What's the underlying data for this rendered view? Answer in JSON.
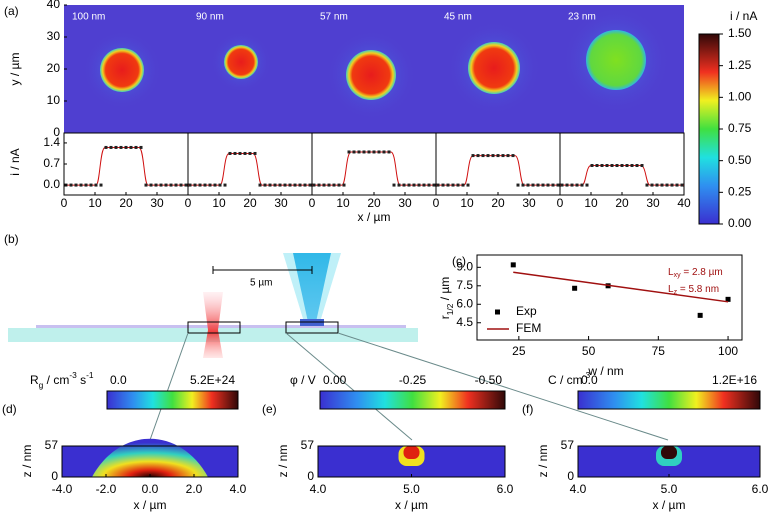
{
  "panel_a": {
    "label": "(a)",
    "maps": [
      "100 nm",
      "90 nm",
      "57 nm",
      "45 nm",
      "23 nm"
    ],
    "y_label": "y / µm",
    "y_ticks": [
      0,
      10,
      20,
      30,
      40
    ],
    "profile_label": "i / nA",
    "profile_ylim": [
      -0.33,
      1.73
    ],
    "profile_ticks": [
      {
        "value": 0,
        "label": "0.0"
      },
      {
        "value": 0.7,
        "label": "0.7"
      },
      {
        "value": 1.4,
        "label": "1.4"
      }
    ],
    "plateaus": [
      1.25,
      1.05,
      1.1,
      0.98,
      0.65
    ],
    "x_label": "x / µm",
    "x_ticks": [
      0,
      10,
      20,
      30,
      40
    ],
    "colorbar": {
      "label": "i / nA",
      "ticks": [
        {
          "value": 0,
          "label": "0.00"
        },
        {
          "value": 0.25,
          "label": "0.25"
        },
        {
          "value": 0.5,
          "label": "0.50"
        },
        {
          "value": 0.75,
          "label": "0.75"
        },
        {
          "value": 1,
          "label": "1.00"
        },
        {
          "value": 1.25,
          "label": "1.25"
        },
        {
          "value": 1.5,
          "label": "1.50"
        }
      ]
    }
  },
  "panel_b": {
    "label": "(b)",
    "scale": "5 µm"
  },
  "chart_data": {
    "type": "scatter",
    "label": "(c)",
    "x_label": "w / nm",
    "y_label": [
      [
        "r",
        ""
      ],
      [
        "1/2",
        "sub"
      ],
      [
        " / µm",
        ""
      ]
    ],
    "xlim": [
      10,
      105
    ],
    "ylim": [
      3.1,
      10.0
    ],
    "xticks": [
      25,
      50,
      75,
      100
    ],
    "yticks": [
      {
        "value": 4.5,
        "label": "4.5"
      },
      {
        "value": 6,
        "label": "6.0"
      },
      {
        "value": 7.5,
        "label": "7.5"
      },
      {
        "value": 9,
        "label": "9.0"
      }
    ],
    "series": [
      {
        "name": "Exp",
        "color": "#000000",
        "x": [
          23,
          45,
          57,
          90,
          100
        ],
        "values": [
          9.2,
          7.3,
          7.5,
          5.1,
          6.4
        ]
      },
      {
        "name": "FEM",
        "color": "#a01010",
        "x": [
          23,
          100
        ],
        "values": [
          8.6,
          6.2
        ]
      }
    ],
    "annotations": [
      [
        [
          "L",
          ""
        ],
        [
          "xy",
          "sub"
        ],
        [
          " = 2.8 µm",
          ""
        ]
      ],
      [
        [
          "L",
          ""
        ],
        [
          "z",
          "sub"
        ],
        [
          " = 5.8 nm",
          ""
        ]
      ]
    ]
  },
  "panels_bottom": [
    {
      "label": "(d)",
      "quantity": [
        [
          "R",
          ""
        ],
        [
          "g",
          "sub"
        ],
        [
          " / cm",
          ""
        ],
        [
          "-3",
          "sup"
        ],
        [
          " s",
          ""
        ],
        [
          "-1",
          "sup"
        ]
      ],
      "cbar_labels": [
        "0.0",
        "5.2E+24"
      ],
      "z_label": "z / nm",
      "z_ticks": [
        0,
        57
      ],
      "x_label": "x / µm",
      "x_ticks": [
        {
          "value": -4,
          "label": "-4.0"
        },
        {
          "value": -2,
          "label": "-2.0"
        },
        {
          "value": 0,
          "label": "0.0"
        },
        {
          "value": 2,
          "label": "2.0"
        },
        {
          "value": 4,
          "label": "4.0"
        }
      ]
    },
    {
      "label": "(e)",
      "quantity": [
        [
          "φ / V",
          ""
        ]
      ],
      "cbar_labels": [
        "0.00",
        "-0.25",
        "-0.50"
      ],
      "z_label": "z / nm",
      "z_ticks": [
        0,
        57
      ],
      "x_label": "x / µm",
      "x_ticks": [
        {
          "value": 4,
          "label": "4.0"
        },
        {
          "value": 5,
          "label": "5.0"
        },
        {
          "value": 6,
          "label": "6.0"
        }
      ]
    },
    {
      "label": "(f)",
      "quantity": [
        [
          "C / cm",
          ""
        ],
        [
          "-3",
          "sup"
        ]
      ],
      "cbar_labels": [
        "0.0",
        "1.2E+16"
      ],
      "z_label": "z / nm",
      "z_ticks": [
        0,
        57
      ],
      "x_label": "x / µm",
      "x_ticks": [
        {
          "value": 4,
          "label": "4.0"
        },
        {
          "value": 5,
          "label": "5.0"
        },
        {
          "value": 6,
          "label": "6.0"
        }
      ]
    }
  ]
}
